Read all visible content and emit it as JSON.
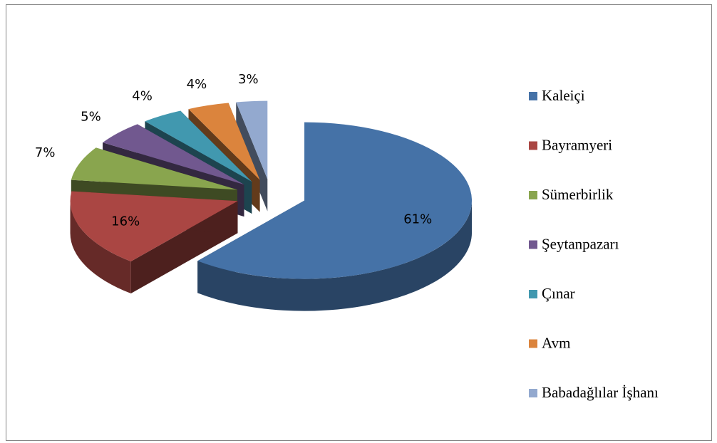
{
  "chart_data": {
    "type": "pie3d",
    "categories": [
      "Kaleiçi",
      "Bayramyeri",
      "Sümerbirlik",
      "Şeytanpazarı",
      "Çınar",
      "Avm",
      "Babadağlılar İşhanı"
    ],
    "values": [
      61,
      16,
      7,
      5,
      4,
      4,
      3
    ],
    "value_labels": [
      "61%",
      "16%",
      "7%",
      "5%",
      "4%",
      "4%",
      "3%"
    ],
    "colors": [
      "#4572a7",
      "#aa4643",
      "#89a54e",
      "#71588f",
      "#4198af",
      "#db843d",
      "#93a9cf"
    ],
    "legend": "right"
  }
}
